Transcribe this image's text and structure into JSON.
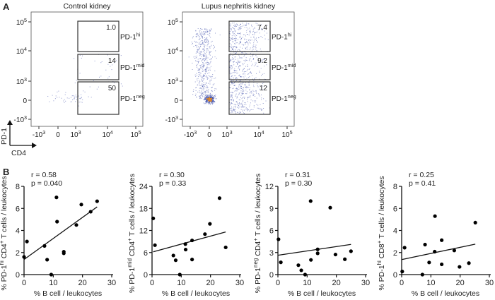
{
  "panel_a": {
    "label": "A",
    "axis_arrows": {
      "y": "PD-1",
      "x": "CD4"
    },
    "tick_labels": [
      {
        "base": "-10",
        "exp": "3"
      },
      {
        "base": "0",
        "exp": ""
      },
      {
        "base": "10",
        "exp": "3"
      },
      {
        "base": "10",
        "exp": "4"
      },
      {
        "base": "10",
        "exp": "5"
      }
    ],
    "gate_labels": [
      {
        "base": "PD-1",
        "exp": "hi"
      },
      {
        "base": "PD-1",
        "exp": "mid"
      },
      {
        "base": "PD-1",
        "exp": "neg"
      }
    ],
    "plots": [
      {
        "title": "Control kidney",
        "gate_values": [
          "1.0",
          "14",
          "50"
        ]
      },
      {
        "title": "Lupus nephritis kidney",
        "gate_values": [
          "7.4",
          "9.2",
          "12"
        ]
      }
    ],
    "colors": {
      "events": "#3a4aa8",
      "dense_events": "#e08a2a"
    }
  },
  "panel_b": {
    "label": "B"
  },
  "chart_data": [
    {
      "type": "scatter",
      "xlabel": "% B cell / leukocytes",
      "ylabel": {
        "prefix": "% PD-1",
        "sup1": "hi",
        "mid": " CD4",
        "sup2": "+",
        "suffix": " T cells / leukocytes"
      },
      "xlim": [
        0,
        30
      ],
      "ylim": [
        0,
        8
      ],
      "xticks": [
        0,
        10,
        20,
        30
      ],
      "yticks": [
        0,
        2,
        4,
        6,
        8
      ],
      "r": "r = 0.58",
      "p": "p = 0.040",
      "points": [
        [
          0,
          1.6
        ],
        [
          1.0,
          3.0
        ],
        [
          7.0,
          2.6
        ],
        [
          7.9,
          1.35
        ],
        [
          9.3,
          0
        ],
        [
          11.1,
          7.0
        ],
        [
          11.3,
          4.8
        ],
        [
          13.6,
          2.07
        ],
        [
          13.6,
          1.93
        ],
        [
          17.9,
          4.5
        ],
        [
          19.6,
          6.35
        ],
        [
          22.8,
          5.7
        ],
        [
          25,
          6.65
        ]
      ],
      "fit": [
        [
          0,
          1.37
        ],
        [
          25,
          6.14
        ]
      ]
    },
    {
      "type": "scatter",
      "xlabel": "% B cell / leukocytes",
      "ylabel": {
        "prefix": "% PD-1",
        "sup1": "mid",
        "mid": " CD4",
        "sup2": "+",
        "suffix": " T cells / leukocytes"
      },
      "xlim": [
        0,
        30
      ],
      "ylim": [
        0,
        24
      ],
      "xticks": [
        0,
        10,
        20,
        30
      ],
      "yticks": [
        0,
        6,
        12,
        18,
        24
      ],
      "r": "r = 0.30",
      "p": "p = 0.33",
      "points": [
        [
          0.4,
          15.3
        ],
        [
          1.0,
          8.0
        ],
        [
          7.3,
          5.2
        ],
        [
          8.1,
          3.9
        ],
        [
          9.5,
          0
        ],
        [
          11.4,
          8.3
        ],
        [
          11.5,
          6.8
        ],
        [
          13.7,
          9.3
        ],
        [
          13.7,
          4.1
        ],
        [
          18.1,
          11.0
        ],
        [
          19.8,
          13.8
        ],
        [
          23.1,
          20.8
        ],
        [
          25.2,
          7.4
        ]
      ],
      "fit": [
        [
          0.4,
          6.2
        ],
        [
          25.2,
          11.6
        ]
      ]
    },
    {
      "type": "scatter",
      "xlabel": "% B cell / leukocytes",
      "ylabel": {
        "prefix": "% PD-1",
        "sup1": "neg",
        "mid": " CD4",
        "sup2": "+",
        "suffix": " T cells / leukocytes"
      },
      "xlim": [
        0,
        30
      ],
      "ylim": [
        0,
        12
      ],
      "xticks": [
        0,
        10,
        20,
        30
      ],
      "yticks": [
        0,
        3,
        6,
        9,
        12
      ],
      "r": "r = 0.31",
      "p": "p = 0.30",
      "points": [
        [
          0.2,
          4.8
        ],
        [
          1.0,
          1.67
        ],
        [
          7.0,
          1.28
        ],
        [
          8.0,
          0.58
        ],
        [
          9.3,
          0
        ],
        [
          11.2,
          10.0
        ],
        [
          11.3,
          2.0
        ],
        [
          13.6,
          3.43
        ],
        [
          13.6,
          2.89
        ],
        [
          17.9,
          9.1
        ],
        [
          19.7,
          2.73
        ],
        [
          22.9,
          2.09
        ],
        [
          25,
          3.18
        ]
      ],
      "fit": [
        [
          0,
          2.63
        ],
        [
          25,
          4.1
        ]
      ]
    },
    {
      "type": "scatter",
      "xlabel": "% B cell / leukocytes",
      "ylabel": {
        "prefix": "% PD-1",
        "sup1": "hi",
        "mid": " CD8",
        "sup2": "+",
        "suffix": " T cells / leukocytes"
      },
      "xlim": [
        0,
        30
      ],
      "ylim": [
        0,
        8
      ],
      "xticks": [
        0,
        10,
        20,
        30
      ],
      "yticks": [
        0,
        2,
        4,
        6,
        8
      ],
      "r": "r = 0.25",
      "p": "p = 0.41",
      "points": [
        [
          0.2,
          0.28
        ],
        [
          1.0,
          2.44
        ],
        [
          7.1,
          0
        ],
        [
          8.0,
          2.72
        ],
        [
          9.4,
          1.1
        ],
        [
          11.4,
          5.3
        ],
        [
          11.3,
          2.08
        ],
        [
          13.7,
          3.12
        ],
        [
          13.7,
          0.93
        ],
        [
          18.0,
          2.19
        ],
        [
          19.8,
          0.7
        ],
        [
          23.0,
          1.04
        ],
        [
          25.2,
          4.71
        ]
      ],
      "fit": [
        [
          0,
          1.36
        ],
        [
          25.2,
          2.76
        ]
      ]
    }
  ]
}
